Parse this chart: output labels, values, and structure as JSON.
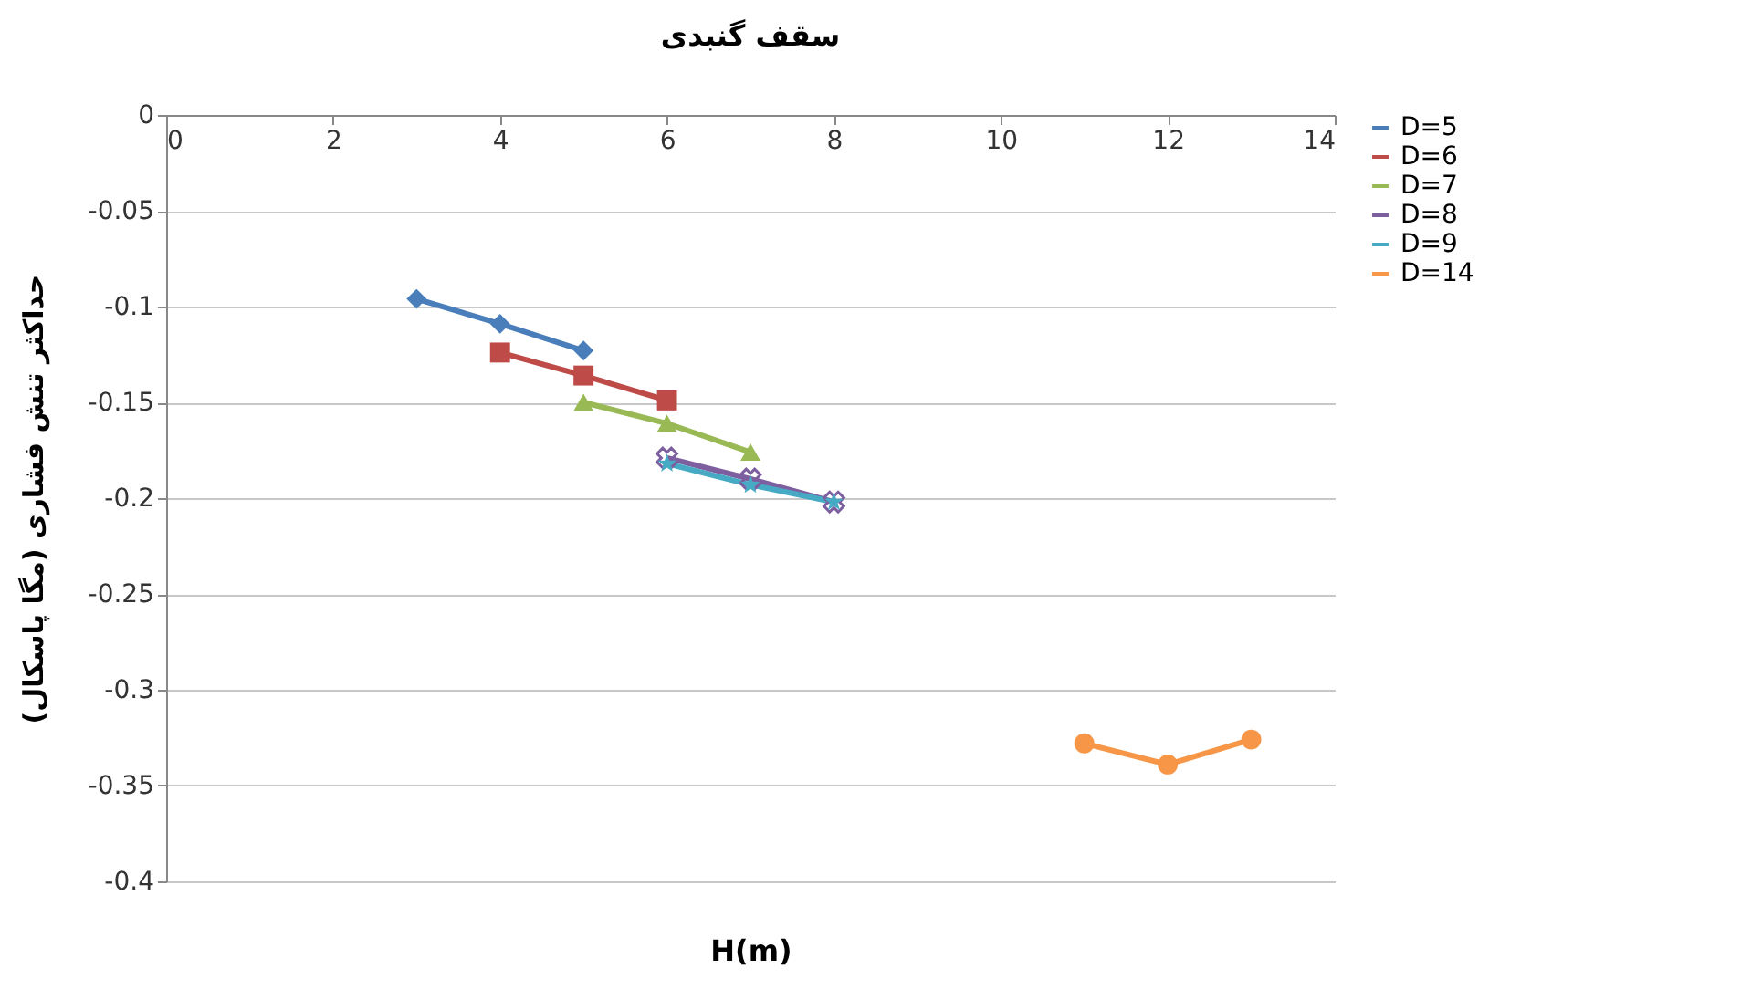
{
  "chart_data": {
    "type": "line",
    "title": "سقف گنبدی",
    "xlabel": "H(m)",
    "ylabel": "حداکثر تنش فشاری (مگا پاسکال)",
    "xlim": [
      0,
      14
    ],
    "xticks": [
      0,
      2,
      4,
      6,
      8,
      10,
      12,
      14
    ],
    "ylim": [
      -0.4,
      0
    ],
    "yticks": [
      -0.4,
      -0.35,
      -0.3,
      -0.25,
      -0.2,
      -0.15,
      -0.1,
      -0.05,
      0
    ],
    "grid": "y",
    "legend": "right",
    "series": [
      {
        "name": "D=5",
        "color": "#4a7ebb",
        "marker": "diamond",
        "x": [
          3,
          4,
          5
        ],
        "values": [
          -0.096,
          -0.109,
          -0.123
        ]
      },
      {
        "name": "D=6",
        "color": "#be4b48",
        "marker": "square",
        "x": [
          4,
          5,
          6
        ],
        "values": [
          -0.124,
          -0.136,
          -0.149
        ]
      },
      {
        "name": "D=7",
        "color": "#98b954",
        "marker": "triangle",
        "x": [
          5,
          6,
          7
        ],
        "values": [
          -0.15,
          -0.161,
          -0.176
        ]
      },
      {
        "name": "D=8",
        "color": "#7d5fa0",
        "marker": "cross",
        "x": [
          6,
          7,
          8
        ],
        "values": [
          -0.179,
          -0.19,
          -0.202
        ]
      },
      {
        "name": "D=9",
        "color": "#46aac5",
        "marker": "star",
        "x": [
          6,
          7,
          8
        ],
        "values": [
          -0.182,
          -0.193,
          -0.202
        ]
      },
      {
        "name": "D=14",
        "color": "#f79646",
        "marker": "circle",
        "x": [
          11,
          12,
          13
        ],
        "values": [
          -0.328,
          -0.339,
          -0.326
        ]
      }
    ]
  }
}
